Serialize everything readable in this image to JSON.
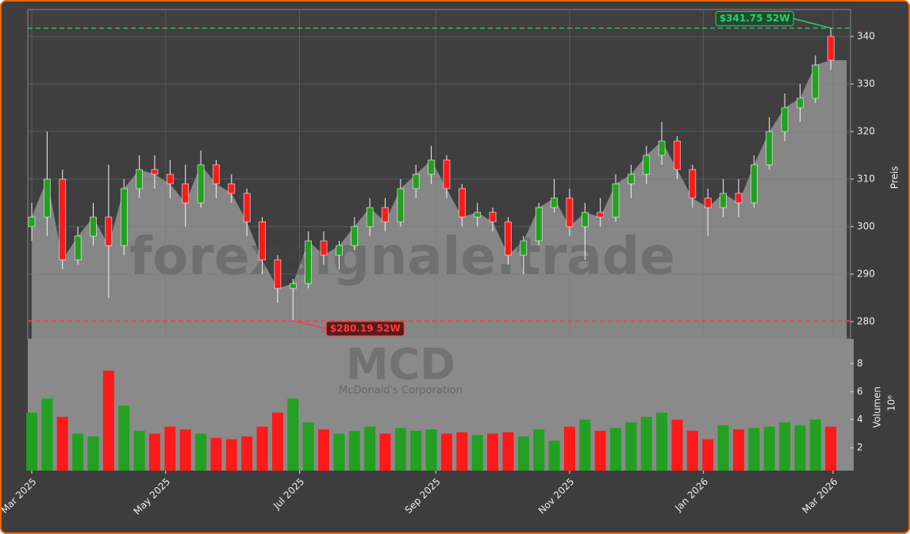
{
  "chart_data": [
    {
      "type": "candlestick",
      "watermark": "forexsignale.trade",
      "ylabel": "Preis",
      "categories": [
        null,
        null,
        null,
        null,
        null,
        null,
        null,
        null,
        null,
        null,
        null,
        null,
        null,
        null,
        null,
        null,
        null,
        null,
        null,
        null,
        null,
        null,
        null,
        null,
        null,
        null,
        null,
        null,
        null,
        null,
        null,
        null,
        null,
        null,
        null,
        null,
        null,
        null,
        null,
        null,
        null,
        null,
        null,
        null,
        null,
        null,
        null,
        null,
        null,
        null,
        null,
        null,
        null
      ],
      "open": [
        300,
        302,
        310,
        293,
        298,
        302,
        296,
        308,
        312,
        311,
        309,
        305,
        313,
        309,
        307,
        301,
        293,
        287,
        288,
        297,
        294,
        296,
        300,
        304,
        301,
        308,
        311,
        314,
        308,
        302,
        303,
        301,
        294,
        297,
        304,
        306,
        300,
        303,
        302,
        309,
        311,
        315,
        318,
        312,
        306,
        304,
        307,
        305,
        313,
        320,
        325,
        327,
        340
      ],
      "high": [
        305,
        320,
        312,
        300,
        305,
        313,
        310,
        315,
        315,
        314,
        313,
        316,
        314,
        311,
        308,
        302,
        294,
        289,
        299,
        299,
        297,
        302,
        306,
        306,
        310,
        313,
        317,
        315,
        309,
        305,
        304,
        302,
        298,
        305,
        310,
        308,
        305,
        306,
        311,
        313,
        317,
        322,
        319,
        313,
        308,
        310,
        310,
        315,
        323,
        328,
        330,
        336,
        341.75
      ],
      "low": [
        297,
        298,
        291,
        292,
        296,
        285,
        294,
        306,
        308,
        306,
        300,
        304,
        306,
        305,
        298,
        290,
        284,
        280.19,
        287,
        292,
        291,
        295,
        298,
        299,
        300,
        306,
        309,
        306,
        300,
        300,
        299,
        292,
        290,
        296,
        303,
        298,
        293,
        300,
        301,
        306,
        309,
        313,
        310,
        304,
        298,
        302,
        302,
        304,
        312,
        318,
        322,
        326,
        333
      ],
      "close": [
        302,
        310,
        293,
        298,
        302,
        296,
        308,
        312,
        311,
        309,
        305,
        313,
        309,
        307,
        301,
        293,
        287,
        288,
        297,
        294,
        296,
        300,
        304,
        301,
        308,
        311,
        314,
        308,
        302,
        303,
        301,
        294,
        297,
        304,
        306,
        300,
        303,
        302,
        309,
        311,
        315,
        318,
        312,
        306,
        304,
        307,
        305,
        313,
        320,
        325,
        327,
        334,
        335
      ],
      "up_color": "#22a022",
      "down_color": "#ff1a1a",
      "area_color": "#8a8a8a",
      "xlim": [
        -0.26,
        53.28
      ],
      "xticks": [
        0,
        8.71,
        17.43,
        26.29,
        35,
        43.71,
        52.14
      ],
      "ylim": [
        276.33,
        345.67
      ],
      "yticks": [
        280,
        290,
        300,
        310,
        320,
        330,
        340
      ],
      "grid": true,
      "annotations": [
        {
          "text": "$341.75 52W",
          "value": 341.75,
          "color": "#2ecc71"
        },
        {
          "text": "$280.19 52W",
          "value": 280.19,
          "color": "#ff3b3b"
        }
      ]
    },
    {
      "type": "bar",
      "watermark": "MCD",
      "subtitle": "McDonald's Corporation",
      "ylabel": "Volumen",
      "scale_label": "10⁶",
      "categories": [
        null,
        null,
        null,
        null,
        null,
        null,
        null,
        null,
        null,
        null,
        null,
        null,
        null,
        null,
        null,
        null,
        null,
        null,
        null,
        null,
        null,
        null,
        null,
        null,
        null,
        null,
        null,
        null,
        null,
        null,
        null,
        null,
        null,
        null,
        null,
        null,
        null,
        null,
        null,
        null,
        null,
        null,
        null,
        null,
        null,
        null,
        null,
        null,
        null,
        null,
        null,
        null,
        null
      ],
      "values": [
        4.5,
        5.5,
        4.2,
        3.0,
        2.8,
        7.5,
        5.0,
        3.2,
        3.0,
        3.5,
        3.3,
        3.0,
        2.7,
        2.6,
        2.8,
        3.5,
        4.5,
        5.5,
        3.8,
        3.3,
        3.0,
        3.2,
        3.5,
        3.0,
        3.4,
        3.2,
        3.3,
        3.0,
        3.1,
        2.9,
        3.0,
        3.1,
        2.8,
        3.3,
        2.5,
        3.5,
        4.0,
        3.2,
        3.4,
        3.8,
        4.2,
        4.5,
        4.0,
        3.2,
        2.6,
        3.6,
        3.3,
        3.4,
        3.5,
        3.8,
        3.6,
        4.0,
        3.5
      ],
      "open_ref": "chart_data.0",
      "up_color": "#22a022",
      "down_color": "#ff1a1a",
      "xlim": [
        -0.26,
        53.28
      ],
      "xticks": [
        {
          "value": 0,
          "label": "Mar 2025"
        },
        {
          "value": 8.71,
          "label": "May 2025"
        },
        {
          "value": 17.43,
          "label": "Jul 2025"
        },
        {
          "value": 26.29,
          "label": "Sep 2025"
        },
        {
          "value": 35,
          "label": "Nov 2025"
        },
        {
          "value": 43.71,
          "label": "Jan 2026"
        },
        {
          "value": 52.14,
          "label": "Mar 2026"
        }
      ],
      "ylim": [
        0.36,
        9.75
      ],
      "yticks": [
        2,
        4,
        6,
        8
      ]
    }
  ]
}
